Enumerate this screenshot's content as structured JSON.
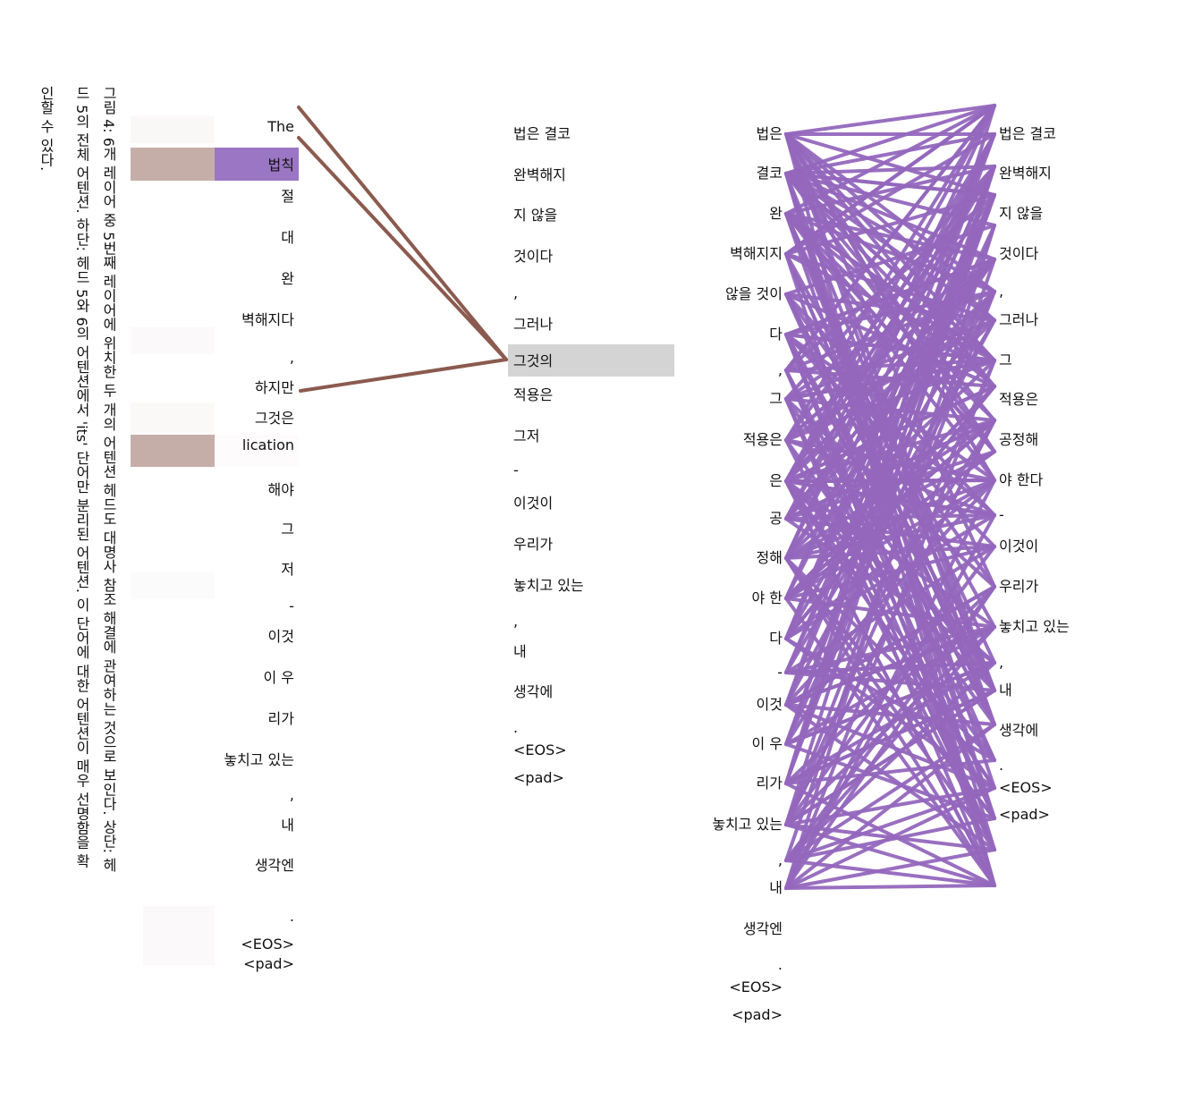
{
  "caption": {
    "line1": "그림 4: 6개 레이어 중 5번째 레이어에 위치한 두 개의 어텐션 헤드도 대명사 참조 해결에 관여하는 것으로 보인다. 상단: 헤",
    "line2": "드 5의 전체 어텐션. 하단: 헤드 5와 6의 어텐션에서 'its' 단어만 분리된 어텐션. 이 단어에 대한 어텐션이 매우 선명함을 확",
    "line3": "인할 수 있다."
  },
  "panelA": {
    "left_tokens": [
      "The",
      "법칙",
      "절",
      "대",
      "완",
      "벽해지다",
      ",",
      "하지만",
      "그것은",
      "lication",
      "해야",
      "그",
      "저",
      "-",
      "이것",
      "이 우",
      "리가",
      "놓치고 있는",
      ",",
      "내",
      "생각엔",
      ".",
      "<EOS>",
      "<pad>"
    ],
    "right_tokens": [
      "법은 결코",
      "완벽해지",
      "지 않을",
      "것이다",
      ",",
      "그러나",
      "그것의",
      "적용은",
      "그저",
      "-",
      "이것이",
      "우리가",
      "놓치고 있는",
      ",",
      "내",
      "생각에",
      ".",
      "<EOS>",
      "<pad>"
    ],
    "highlight_token": "그것의",
    "colors": {
      "line": "#8b5a4e",
      "head_a": "#9b76c4",
      "head_b": "#c6aea8",
      "highlight": "#d4d4d4"
    }
  },
  "panelB": {
    "left_tokens": [
      "법은",
      "결코",
      "완",
      "벽해지지",
      "않을 것이",
      "다",
      ",",
      "그",
      "적용은",
      "은",
      "공",
      "정해",
      "야 한",
      "다",
      "-",
      "이것",
      "이 우",
      "리가",
      "놓치고 있는",
      ",",
      "내",
      "생각엔",
      ".",
      "<EOS>",
      "<pad>"
    ],
    "right_tokens": [
      "법은 결코",
      "완벽해지",
      "지 않을",
      "것이다",
      ",",
      "그러나",
      "그",
      "적용은",
      "공정해",
      "야 한다",
      "-",
      "이것이",
      "우리가",
      "놓치고 있는",
      ",",
      "내",
      "생각에",
      ".",
      "<EOS>",
      "<pad>"
    ],
    "colors": {
      "line": "#9467bd"
    }
  }
}
